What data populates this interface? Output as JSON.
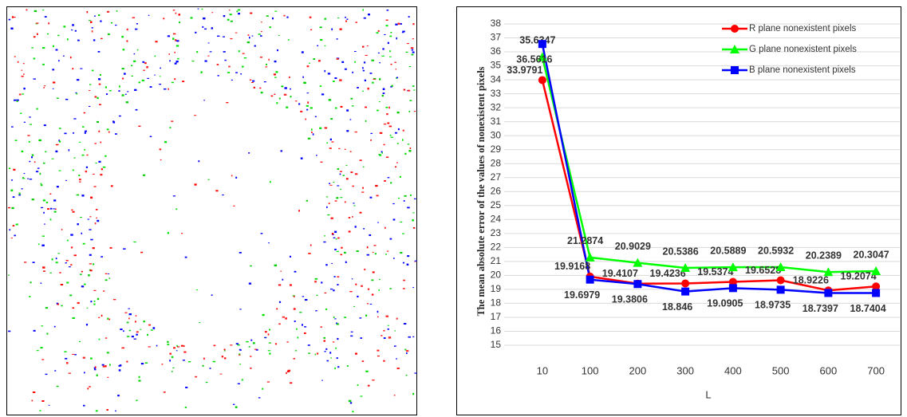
{
  "chart_data": {
    "type": "line",
    "x_label": "L",
    "y_label": "The mean absolute error of the values of nonexistent pixels",
    "categories": [
      "10",
      "100",
      "200",
      "300",
      "400",
      "500",
      "600",
      "700"
    ],
    "series": [
      {
        "name": "R plane nonexistent pixels",
        "color": "#ff0000",
        "marker": "circle",
        "values": [
          33.9791,
          19.9168,
          19.4107,
          19.4236,
          19.5374,
          19.6528,
          18.9226,
          19.2074
        ]
      },
      {
        "name": "G plane nonexistent pixels",
        "color": "#00ff00",
        "marker": "triangle",
        "values": [
          35.6347,
          21.2874,
          20.9029,
          20.5386,
          20.5889,
          20.5932,
          20.2389,
          20.3047
        ]
      },
      {
        "name": "B plane nonexistent pixels",
        "color": "#0000ff",
        "marker": "square",
        "values": [
          36.5616,
          19.6979,
          19.3806,
          18.846,
          19.0905,
          18.9735,
          18.7397,
          18.7404
        ]
      }
    ],
    "ylim": [
      15,
      38
    ],
    "yticks": [
      15,
      16,
      17,
      18,
      19,
      20,
      21,
      22,
      23,
      24,
      25,
      26,
      27,
      28,
      29,
      30,
      31,
      32,
      33,
      34,
      35,
      36,
      37,
      38
    ],
    "grid": true,
    "legend": "top-right"
  }
}
